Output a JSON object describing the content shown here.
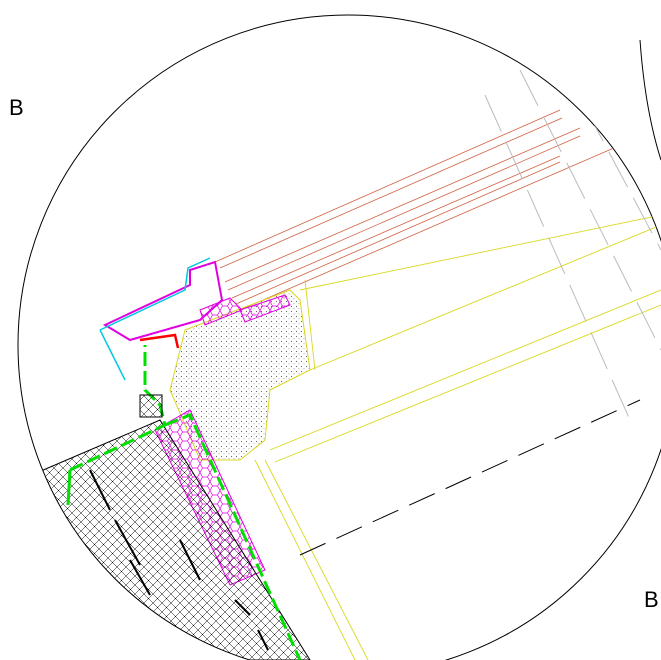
{
  "labels": [
    "B",
    "B"
  ]
}
